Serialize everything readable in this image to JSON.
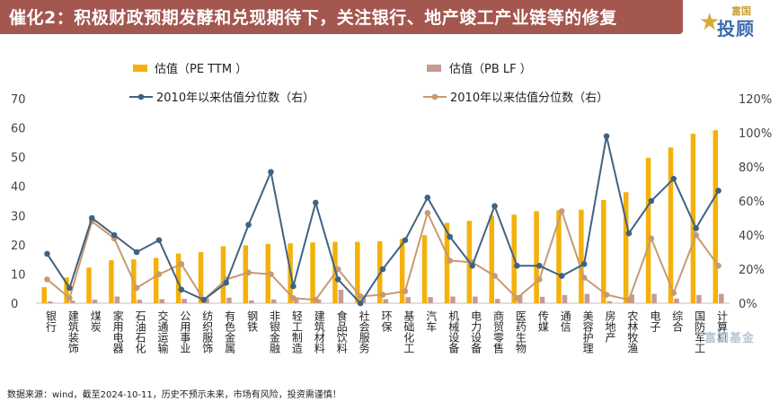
{
  "header": {
    "title": "催化2：积极财政预期发酵和兑现期待下，关注银行、地产竣工产业链等的修复"
  },
  "logo": {
    "top_text": "富国",
    "main_text": "投顾"
  },
  "footer": {
    "source": "数据来源：wind，截至2024-10-11，历史不预示未来，市场有风险，投资需谨慎！"
  },
  "watermark": {
    "text": "富国基金"
  },
  "colors": {
    "pe_bar": "#f4b10b",
    "pb_bar": "#c79a92",
    "pe_pct_line": "#3f6383",
    "pb_pct_line": "#c79a72"
  },
  "chart_data": {
    "type": "bar",
    "legend": [
      "估值（PE TTM ）",
      "估值（PB LF ）",
      "2010年以来估值分位数（右）",
      "2010年以来估值分位数（右）"
    ],
    "categories": [
      "银行",
      "建筑装饰",
      "煤炭",
      "家用电器",
      "石油石化",
      "交通运输",
      "公用事业",
      "纺织服饰",
      "有色金属",
      "钢铁",
      "非银金融",
      "轻工制造",
      "建筑材料",
      "食品饮料",
      "社会服务",
      "环保",
      "基础化工",
      "汽车",
      "机械设备",
      "电力设备",
      "商贸零售",
      "医药生物",
      "传媒",
      "通信",
      "美容护理",
      "房地产",
      "农林牧渔",
      "电子",
      "综合",
      "国防军工",
      "计算机"
    ],
    "series": [
      {
        "name": "估值（PE TTM ）",
        "axis": "left",
        "kind": "bar",
        "values": [
          5.5,
          8.8,
          12.2,
          14.7,
          15,
          15.5,
          17,
          17.5,
          19.5,
          19.8,
          20.3,
          20.5,
          20.8,
          21,
          21,
          21.2,
          22,
          23.3,
          27.5,
          28.2,
          30,
          30.3,
          31.5,
          31.8,
          32,
          35.3,
          38,
          49.8,
          53.3,
          58,
          59.2
        ]
      },
      {
        "name": "估值（PB LF ）",
        "axis": "left",
        "kind": "bar",
        "values": [
          0.6,
          0.9,
          1.2,
          2.3,
          1.2,
          1.4,
          1.5,
          1.7,
          1.9,
          1.0,
          1.3,
          2.0,
          1.3,
          4.6,
          2.6,
          1.4,
          2.1,
          2.1,
          2.3,
          2.3,
          1.5,
          2.8,
          2.2,
          2.8,
          3.2,
          0.7,
          3.0,
          3.2,
          1.6,
          2.8,
          3.2
        ]
      },
      {
        "name": "2010年以来估值分位数（右）",
        "axis": "right",
        "kind": "line",
        "values": [
          29,
          9,
          50,
          40,
          30,
          37,
          8,
          2,
          12,
          46,
          77,
          10,
          59,
          14,
          0,
          20,
          37,
          62,
          39,
          22,
          57,
          22,
          22,
          16,
          23,
          98,
          41,
          60,
          73,
          44,
          66
        ]
      },
      {
        "name": "2010年以来估值分位数（右）",
        "axis": "right",
        "kind": "line",
        "values": [
          14,
          3,
          48,
          38,
          9,
          17,
          23,
          2,
          14,
          18,
          17,
          3,
          2,
          20,
          4,
          5,
          7,
          53,
          25,
          24,
          16,
          3,
          14,
          54,
          15,
          5,
          2,
          38,
          6,
          40,
          22
        ]
      }
    ],
    "ylim": [
      0,
      70
    ],
    "yticks": [
      0,
      10,
      20,
      30,
      40,
      50,
      60,
      70
    ],
    "y2lim": [
      0,
      120
    ],
    "y2ticks": [
      "0%",
      "20%",
      "40%",
      "60%",
      "80%",
      "100%",
      "120%"
    ]
  }
}
